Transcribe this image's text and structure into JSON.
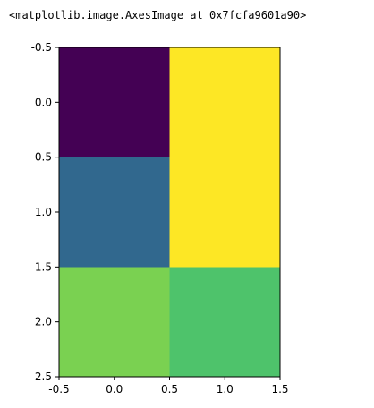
{
  "output_text": "<matplotlib.image.AxesImage at 0x7fcfa9601a90>",
  "chart_data": {
    "type": "heatmap",
    "colormap": "viridis",
    "grid": false,
    "xlim": [
      -0.5,
      1.5
    ],
    "ylim": [
      2.5,
      -0.5
    ],
    "x_ticks": [
      "-0.5",
      "0.0",
      "0.5",
      "1.0",
      "1.5"
    ],
    "y_ticks": [
      "-0.5",
      "0.0",
      "0.5",
      "1.0",
      "1.5",
      "2.0",
      "2.5"
    ],
    "cells": [
      {
        "row": 0,
        "col": 0,
        "color": "#440154"
      },
      {
        "row": 0,
        "col": 1,
        "color": "#fde725"
      },
      {
        "row": 1,
        "col": 0,
        "color": "#31688e"
      },
      {
        "row": 1,
        "col": 1,
        "color": "#fde725"
      },
      {
        "row": 2,
        "col": 0,
        "color": "#7ad151"
      },
      {
        "row": 2,
        "col": 1,
        "color": "#4ec36b"
      }
    ]
  }
}
